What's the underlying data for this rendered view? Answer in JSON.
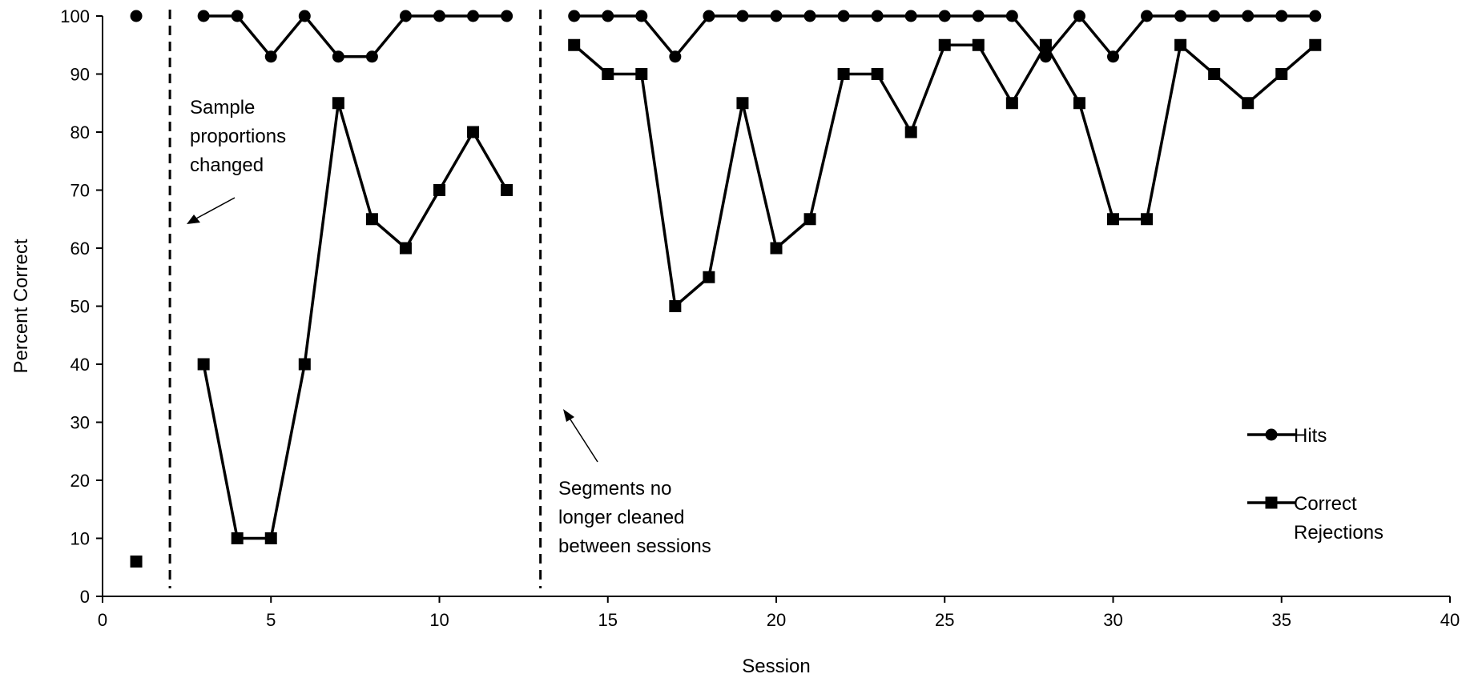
{
  "chart_data": {
    "type": "line",
    "xlabel": "Session",
    "ylabel": "Percent Correct",
    "xlim": [
      0,
      40
    ],
    "ylim": [
      0,
      100
    ],
    "xticks": [
      0,
      5,
      10,
      15,
      20,
      25,
      30,
      35,
      40
    ],
    "yticks": [
      0,
      10,
      20,
      30,
      40,
      50,
      60,
      70,
      80,
      90,
      100
    ],
    "grid": false,
    "legend_position": "right",
    "phase_lines": [
      2,
      13
    ],
    "annotations": [
      {
        "id": "sample",
        "lines": [
          "Sample",
          "proportions",
          "changed"
        ]
      },
      {
        "id": "segments",
        "lines": [
          "Segments no",
          "longer cleaned",
          "between sessions"
        ]
      }
    ],
    "series": [
      {
        "name": "Hits",
        "marker": "circle",
        "color": "#000000",
        "segments": [
          [
            [
              1,
              100
            ]
          ],
          [
            [
              3,
              100
            ],
            [
              4,
              100
            ],
            [
              5,
              93
            ],
            [
              6,
              100
            ],
            [
              7,
              93
            ],
            [
              8,
              93
            ],
            [
              9,
              100
            ],
            [
              10,
              100
            ],
            [
              11,
              100
            ],
            [
              12,
              100
            ]
          ],
          [
            [
              14,
              100
            ],
            [
              15,
              100
            ],
            [
              16,
              100
            ],
            [
              17,
              93
            ],
            [
              18,
              100
            ],
            [
              19,
              100
            ],
            [
              20,
              100
            ],
            [
              21,
              100
            ],
            [
              22,
              100
            ],
            [
              23,
              100
            ],
            [
              24,
              100
            ],
            [
              25,
              100
            ],
            [
              26,
              100
            ],
            [
              27,
              100
            ],
            [
              28,
              93
            ],
            [
              29,
              100
            ],
            [
              30,
              93
            ],
            [
              31,
              100
            ],
            [
              32,
              100
            ],
            [
              33,
              100
            ],
            [
              34,
              100
            ],
            [
              35,
              100
            ],
            [
              36,
              100
            ]
          ]
        ]
      },
      {
        "name": "Correct Rejections",
        "legend_lines": [
          "Correct",
          "Rejections"
        ],
        "marker": "square",
        "color": "#000000",
        "segments": [
          [
            [
              1,
              6
            ]
          ],
          [
            [
              3,
              40
            ],
            [
              4,
              10
            ],
            [
              5,
              10
            ],
            [
              6,
              40
            ],
            [
              7,
              85
            ],
            [
              8,
              65
            ],
            [
              9,
              60
            ],
            [
              10,
              70
            ],
            [
              11,
              80
            ],
            [
              12,
              70
            ]
          ],
          [
            [
              14,
              95
            ],
            [
              15,
              90
            ],
            [
              16,
              90
            ],
            [
              17,
              50
            ],
            [
              18,
              55
            ],
            [
              19,
              85
            ],
            [
              20,
              60
            ],
            [
              21,
              65
            ],
            [
              22,
              90
            ],
            [
              23,
              90
            ],
            [
              24,
              80
            ],
            [
              25,
              95
            ],
            [
              26,
              95
            ],
            [
              27,
              85
            ],
            [
              28,
              95
            ],
            [
              29,
              85
            ],
            [
              30,
              65
            ],
            [
              31,
              65
            ],
            [
              32,
              95
            ],
            [
              33,
              90
            ],
            [
              34,
              85
            ],
            [
              35,
              90
            ],
            [
              36,
              95
            ]
          ]
        ]
      }
    ]
  }
}
